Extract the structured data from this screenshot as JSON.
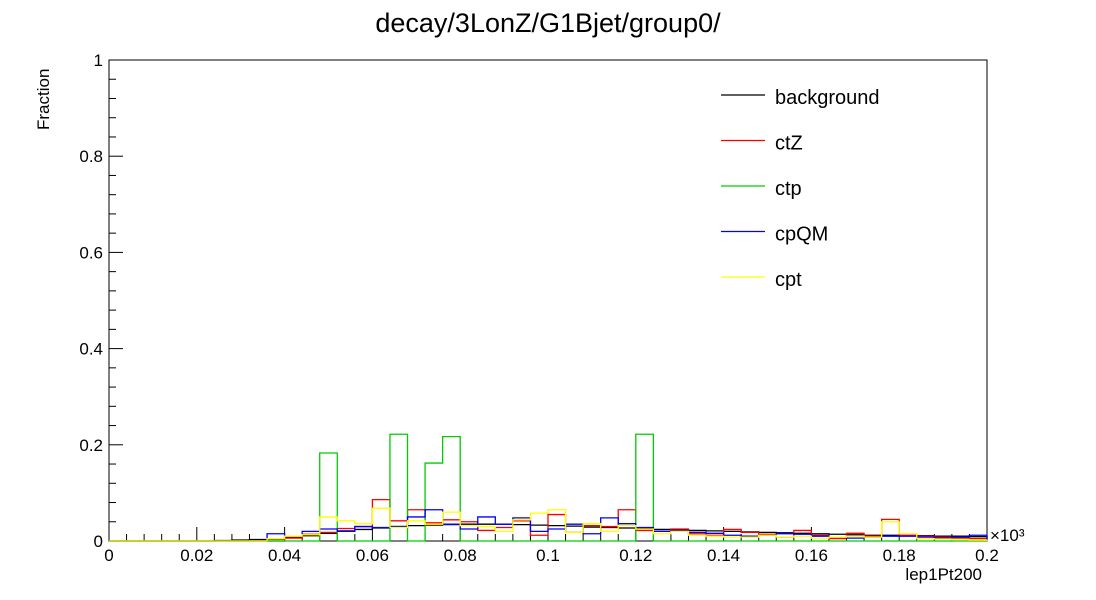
{
  "chart_data": {
    "type": "histogram",
    "title": "decay/3LonZ/G1Bjet/group0/",
    "xlabel": "lep1Pt200",
    "ylabel": "Fraction",
    "x_multiplier_label": "×10³",
    "xlim": [
      0,
      0.2
    ],
    "ylim": [
      0,
      1
    ],
    "x_ticks": [
      0,
      0.02,
      0.04,
      0.06,
      0.08,
      0.1,
      0.12,
      0.14,
      0.16,
      0.18,
      0.2
    ],
    "x_tick_labels": [
      "0",
      "0.02",
      "0.04",
      "0.06",
      "0.08",
      "0.1",
      "0.12",
      "0.14",
      "0.16",
      "0.18",
      "0.2"
    ],
    "y_ticks": [
      0,
      0.2,
      0.4,
      0.6,
      0.8,
      1
    ],
    "y_tick_labels": [
      "0",
      "0.2",
      "0.4",
      "0.6",
      "0.8",
      "1"
    ],
    "bin_width": 0.004,
    "bin_edges_start": 0,
    "legend_position": "top-right",
    "series": [
      {
        "name": "background",
        "color": "#000000",
        "values": [
          0,
          0,
          0,
          0,
          0,
          0,
          0.001,
          0.002,
          0.003,
          0.004,
          0.008,
          0.011,
          0.016,
          0.021,
          0.024,
          0.027,
          0.03,
          0.032,
          0.033,
          0.034,
          0.035,
          0.035,
          0.035,
          0.034,
          0.033,
          0.032,
          0.031,
          0.029,
          0.028,
          0.027,
          0.026,
          0.024,
          0.023,
          0.022,
          0.021,
          0.02,
          0.019,
          0.018,
          0.017,
          0.016,
          0.015,
          0.014,
          0.013,
          0.012,
          0.012,
          0.011,
          0.011,
          0.01,
          0.01,
          0.009
        ]
      },
      {
        "name": "ctZ",
        "color": "#ff0000",
        "values": [
          0,
          0,
          0,
          0,
          0,
          0,
          0,
          0,
          0,
          0,
          0.006,
          0.014,
          0.018,
          0.026,
          0.03,
          0.086,
          0.042,
          0.065,
          0.038,
          0.044,
          0.04,
          0.022,
          0.028,
          0.042,
          0.012,
          0.055,
          0.018,
          0.032,
          0.03,
          0.065,
          0.022,
          0.02,
          0.025,
          0.015,
          0.012,
          0.024,
          0.018,
          0.014,
          0.008,
          0.022,
          0.012,
          0.005,
          0.016,
          0.01,
          0.045,
          0.012,
          0.01,
          0.008,
          0.006,
          0.005
        ]
      },
      {
        "name": "ctp",
        "color": "#00cc00",
        "values": [
          0,
          0,
          0,
          0,
          0,
          0,
          0,
          0,
          0,
          0,
          0,
          0,
          0.183,
          0,
          0,
          0,
          0.222,
          0,
          0.162,
          0.217,
          0,
          0,
          0,
          0,
          0,
          0,
          0,
          0,
          0,
          0,
          0.222,
          0,
          0,
          0,
          0,
          0,
          0,
          0,
          0,
          0,
          0,
          0,
          0,
          0,
          0,
          0,
          0,
          0,
          0,
          0
        ]
      },
      {
        "name": "cpQM",
        "color": "#0000ff",
        "values": [
          0,
          0,
          0,
          0,
          0,
          0,
          0,
          0,
          0,
          0.015,
          0.01,
          0.02,
          0.025,
          0.02,
          0.03,
          0.028,
          0.03,
          0.05,
          0.065,
          0.035,
          0.025,
          0.05,
          0.035,
          0.048,
          0.02,
          0.025,
          0.035,
          0.015,
          0.048,
          0.036,
          0.028,
          0.02,
          0.022,
          0.018,
          0.016,
          0.012,
          0.01,
          0.012,
          0.015,
          0.014,
          0.01,
          0.008,
          0.006,
          0.008,
          0.01,
          0.01,
          0.008,
          0.006,
          0.008,
          0.012
        ]
      },
      {
        "name": "cpt",
        "color": "#ffff00",
        "values": [
          0,
          0,
          0,
          0,
          0,
          0,
          0,
          0,
          0,
          0.005,
          0.01,
          0.013,
          0.05,
          0.042,
          0.036,
          0.068,
          0.028,
          0.042,
          0.035,
          0.06,
          0.032,
          0.03,
          0.02,
          0.044,
          0.058,
          0.065,
          0.018,
          0.036,
          0.02,
          0.032,
          0.025,
          0.015,
          0.02,
          0.012,
          0.01,
          0.008,
          0.008,
          0.012,
          0.008,
          0.01,
          0.006,
          0.008,
          0.01,
          0.008,
          0.04,
          0.015,
          0.005,
          0.004,
          0.003,
          0.002
        ]
      }
    ]
  }
}
